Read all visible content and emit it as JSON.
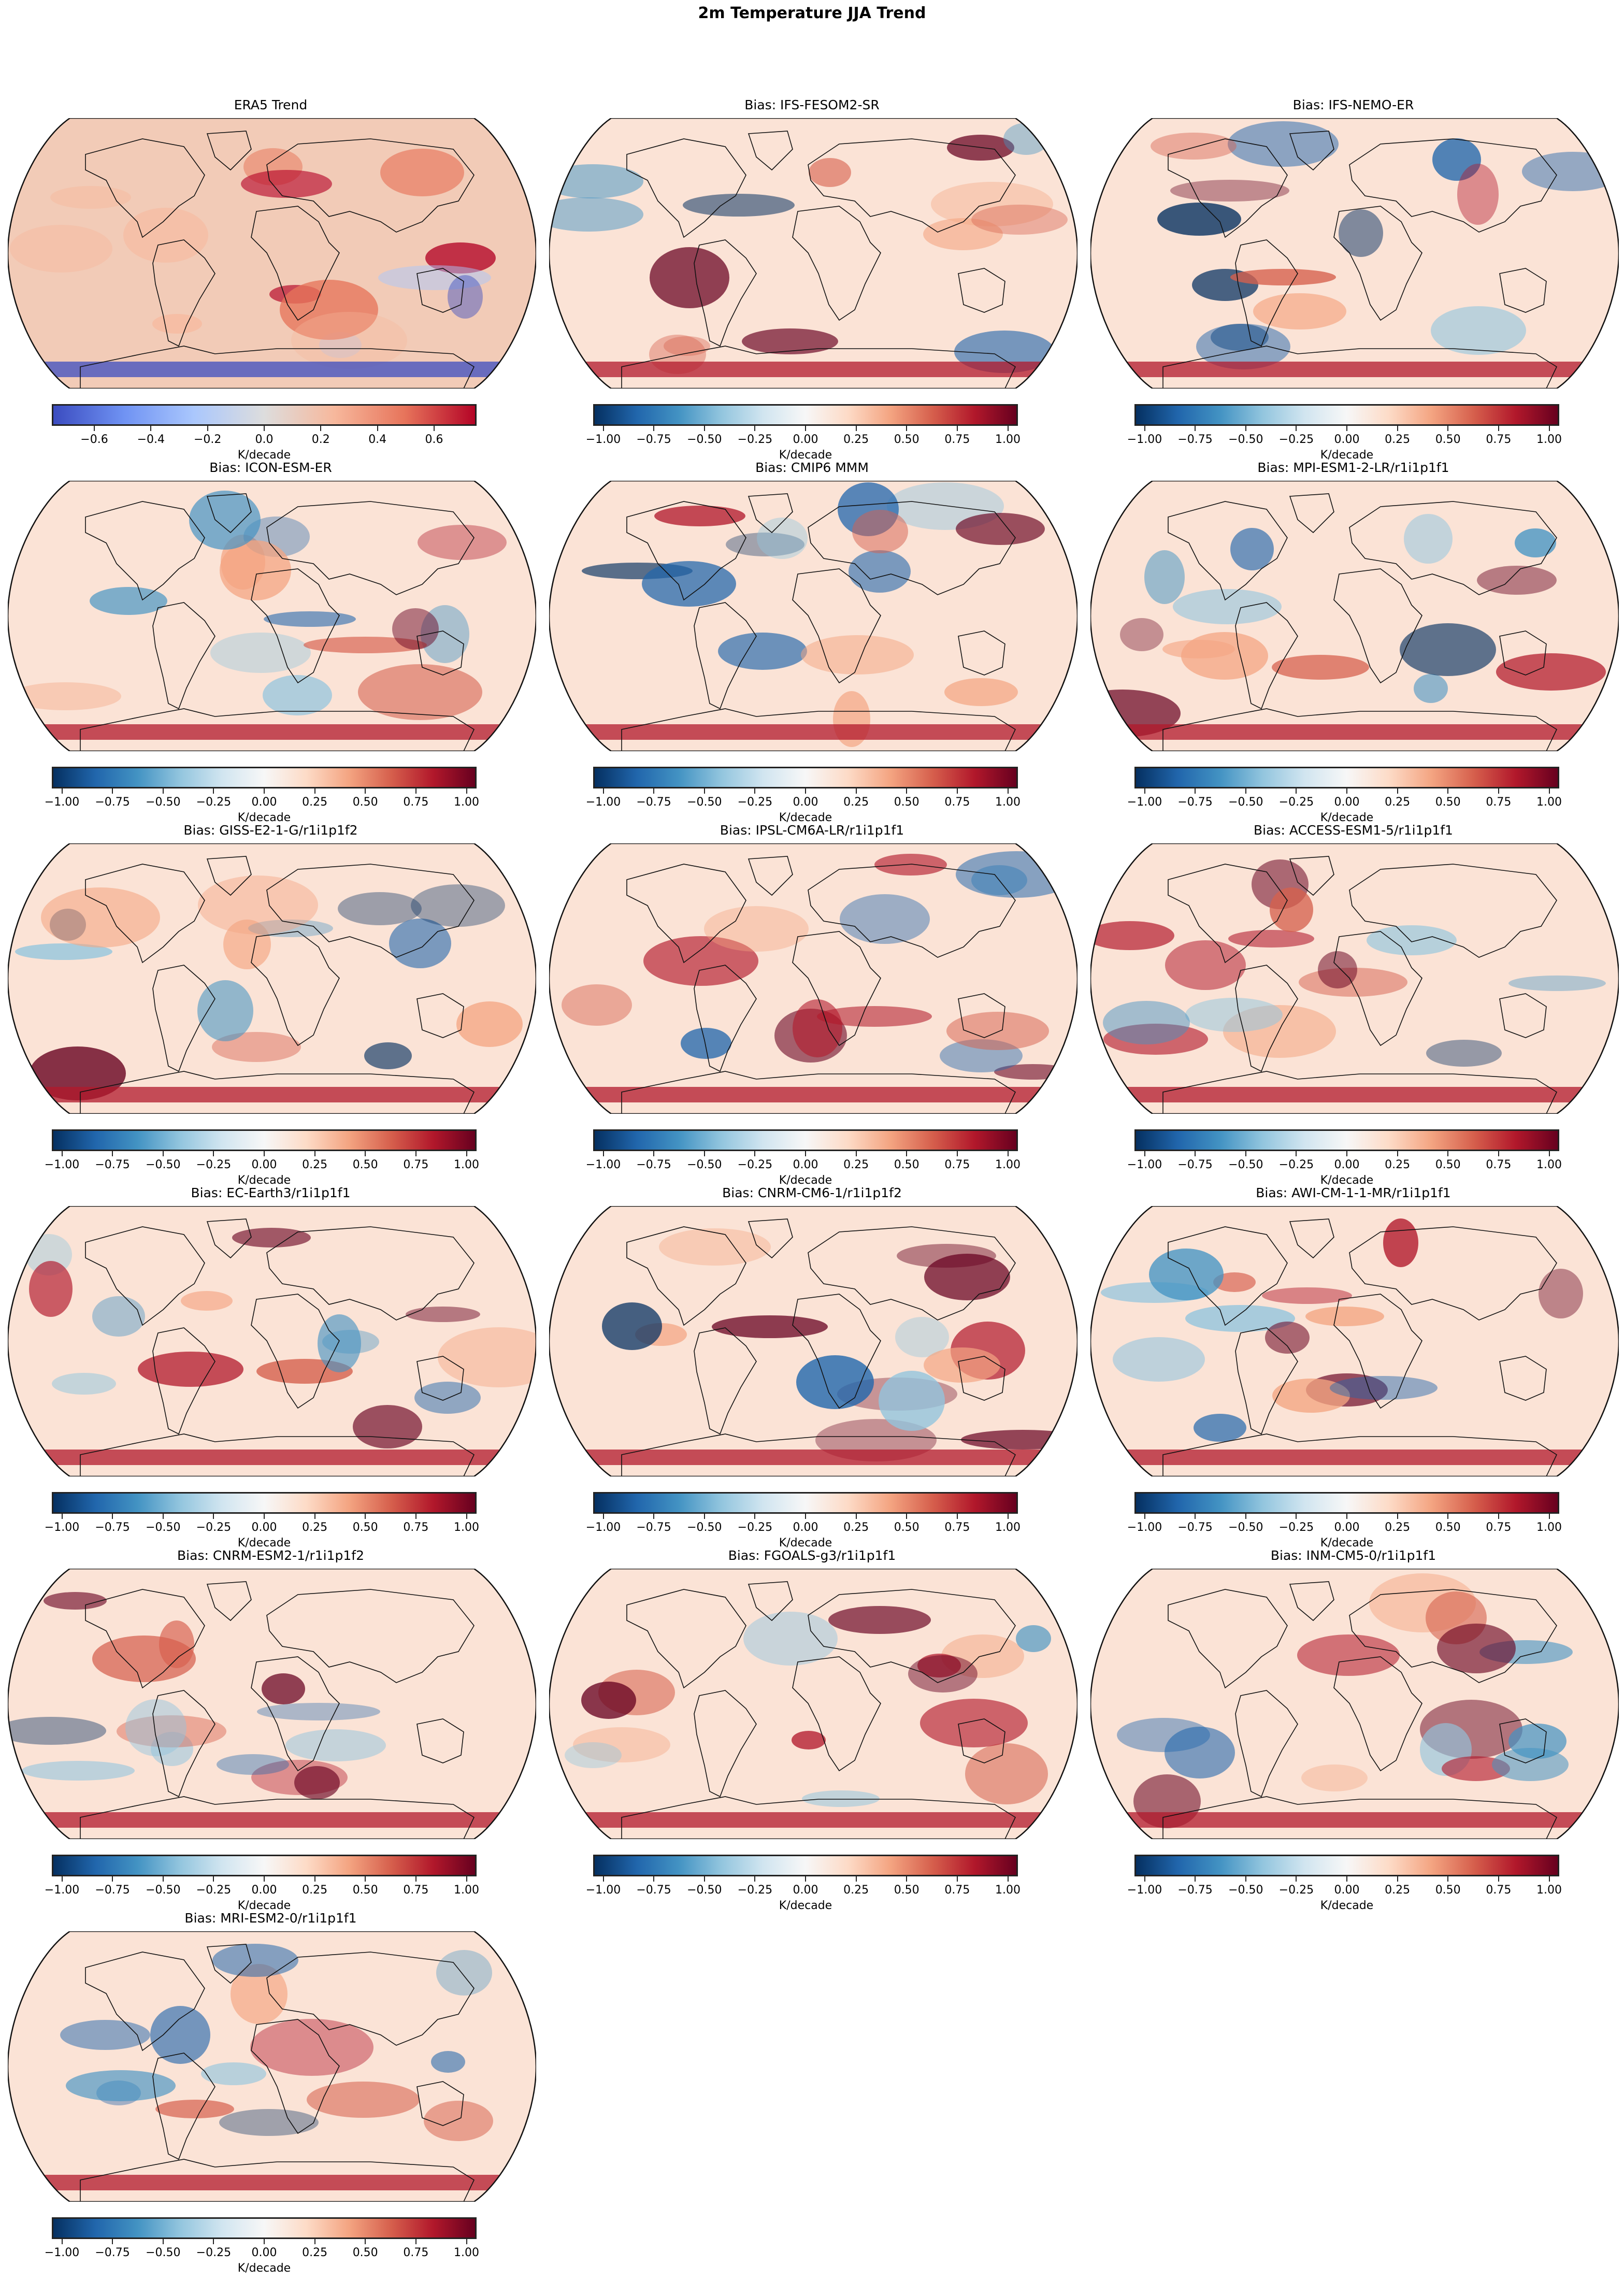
{
  "figure": {
    "suptitle": "2m Temperature JJA Trend"
  },
  "panels": [
    {
      "title": "ERA5 Trend",
      "cmap": "coolwarm",
      "cbar_label": "K/decade",
      "ticks": [
        "−0.6",
        "−0.4",
        "−0.2",
        "0.0",
        "0.2",
        "0.4",
        "0.6"
      ]
    },
    {
      "title": "Bias: IFS-FESOM2-SR",
      "cmap": "RdBu_r",
      "cbar_label": "K/decade",
      "ticks": [
        "−1.00",
        "−0.75",
        "−0.50",
        "−0.25",
        "0.00",
        "0.25",
        "0.50",
        "0.75",
        "1.00"
      ]
    },
    {
      "title": "Bias: IFS-NEMO-ER",
      "cmap": "RdBu_r",
      "cbar_label": "K/decade",
      "ticks": [
        "−1.00",
        "−0.75",
        "−0.50",
        "−0.25",
        "0.00",
        "0.25",
        "0.50",
        "0.75",
        "1.00"
      ]
    },
    {
      "title": "Bias: ICON-ESM-ER",
      "cmap": "RdBu_r",
      "cbar_label": "K/decade",
      "ticks": [
        "−1.00",
        "−0.75",
        "−0.50",
        "−0.25",
        "0.00",
        "0.25",
        "0.50",
        "0.75",
        "1.00"
      ]
    },
    {
      "title": "Bias: CMIP6 MMM",
      "cmap": "RdBu_r",
      "cbar_label": "K/decade",
      "ticks": [
        "−1.00",
        "−0.75",
        "−0.50",
        "−0.25",
        "0.00",
        "0.25",
        "0.50",
        "0.75",
        "1.00"
      ]
    },
    {
      "title": "Bias: MPI-ESM1-2-LR/r1i1p1f1",
      "cmap": "RdBu_r",
      "cbar_label": "K/decade",
      "ticks": [
        "−1.00",
        "−0.75",
        "−0.50",
        "−0.25",
        "0.00",
        "0.25",
        "0.50",
        "0.75",
        "1.00"
      ]
    },
    {
      "title": "Bias: GISS-E2-1-G/r1i1p1f2",
      "cmap": "RdBu_r",
      "cbar_label": "K/decade",
      "ticks": [
        "−1.00",
        "−0.75",
        "−0.50",
        "−0.25",
        "0.00",
        "0.25",
        "0.50",
        "0.75",
        "1.00"
      ]
    },
    {
      "title": "Bias: IPSL-CM6A-LR/r1i1p1f1",
      "cmap": "RdBu_r",
      "cbar_label": "K/decade",
      "ticks": [
        "−1.00",
        "−0.75",
        "−0.50",
        "−0.25",
        "0.00",
        "0.25",
        "0.50",
        "0.75",
        "1.00"
      ]
    },
    {
      "title": "Bias: ACCESS-ESM1-5/r1i1p1f1",
      "cmap": "RdBu_r",
      "cbar_label": "K/decade",
      "ticks": [
        "−1.00",
        "−0.75",
        "−0.50",
        "−0.25",
        "0.00",
        "0.25",
        "0.50",
        "0.75",
        "1.00"
      ]
    },
    {
      "title": "Bias: EC-Earth3/r1i1p1f1",
      "cmap": "RdBu_r",
      "cbar_label": "K/decade",
      "ticks": [
        "−1.00",
        "−0.75",
        "−0.50",
        "−0.25",
        "0.00",
        "0.25",
        "0.50",
        "0.75",
        "1.00"
      ]
    },
    {
      "title": "Bias: CNRM-CM6-1/r1i1p1f2",
      "cmap": "RdBu_r",
      "cbar_label": "K/decade",
      "ticks": [
        "−1.00",
        "−0.75",
        "−0.50",
        "−0.25",
        "0.00",
        "0.25",
        "0.50",
        "0.75",
        "1.00"
      ]
    },
    {
      "title": "Bias: AWI-CM-1-1-MR/r1i1p1f1",
      "cmap": "RdBu_r",
      "cbar_label": "K/decade",
      "ticks": [
        "−1.00",
        "−0.75",
        "−0.50",
        "−0.25",
        "0.00",
        "0.25",
        "0.50",
        "0.75",
        "1.00"
      ]
    },
    {
      "title": "Bias: CNRM-ESM2-1/r1i1p1f2",
      "cmap": "RdBu_r",
      "cbar_label": "K/decade",
      "ticks": [
        "−1.00",
        "−0.75",
        "−0.50",
        "−0.25",
        "0.00",
        "0.25",
        "0.50",
        "0.75",
        "1.00"
      ]
    },
    {
      "title": "Bias: FGOALS-g3/r1i1p1f1",
      "cmap": "RdBu_r",
      "cbar_label": "K/decade",
      "ticks": [
        "−1.00",
        "−0.75",
        "−0.50",
        "−0.25",
        "0.00",
        "0.25",
        "0.50",
        "0.75",
        "1.00"
      ]
    },
    {
      "title": "Bias: INM-CM5-0/r1i1p1f1",
      "cmap": "RdBu_r",
      "cbar_label": "K/decade",
      "ticks": [
        "−1.00",
        "−0.75",
        "−0.50",
        "−0.25",
        "0.00",
        "0.25",
        "0.50",
        "0.75",
        "1.00"
      ]
    },
    {
      "title": "Bias: MRI-ESM2-0/r1i1p1f1",
      "cmap": "RdBu_r",
      "cbar_label": "K/decade",
      "ticks": [
        "−1.00",
        "−0.75",
        "−0.50",
        "−0.25",
        "0.00",
        "0.25",
        "0.50",
        "0.75",
        "1.00"
      ]
    }
  ],
  "colors": {
    "coolwarm": [
      "#3b4cc0",
      "#6f92f3",
      "#aac7fd",
      "#dddddd",
      "#f7b89c",
      "#e7745b",
      "#b40426"
    ],
    "RdBu_r": [
      "#053061",
      "#2166ac",
      "#4393c3",
      "#92c5de",
      "#d1e5f0",
      "#f7f7f7",
      "#fddbc7",
      "#f4a582",
      "#d6604d",
      "#b2182b",
      "#67001f"
    ]
  },
  "chart_data": [
    {
      "type": "heatmap",
      "title": "ERA5 Trend",
      "projection": "Robinson",
      "colorbar": {
        "label": "K/decade",
        "vmin": -0.75,
        "vmax": 0.75,
        "ticks": [
          -0.6,
          -0.4,
          -0.2,
          0.0,
          0.2,
          0.4,
          0.6
        ],
        "cmap": "coolwarm",
        "orientation": "horizontal"
      },
      "notes": "Strong warming over Europe/Middle East, NE Canada, Greenland; cooling over Southern Ocean near Antarctica"
    },
    {
      "type": "heatmap",
      "title": "Bias: IFS-FESOM2-SR",
      "projection": "Robinson",
      "colorbar": {
        "label": "K/decade",
        "vmin": -1.05,
        "vmax": 1.05,
        "ticks": [
          -1.0,
          -0.75,
          -0.5,
          -0.25,
          0.0,
          0.25,
          0.5,
          0.75,
          1.0
        ],
        "cmap": "RdBu_r",
        "orientation": "horizontal"
      }
    },
    {
      "type": "heatmap",
      "title": "Bias: IFS-NEMO-ER",
      "projection": "Robinson",
      "colorbar": {
        "label": "K/decade",
        "vmin": -1.05,
        "vmax": 1.05,
        "ticks": [
          -1.0,
          -0.75,
          -0.5,
          -0.25,
          0.0,
          0.25,
          0.5,
          0.75,
          1.0
        ],
        "cmap": "RdBu_r",
        "orientation": "horizontal"
      }
    },
    {
      "type": "heatmap",
      "title": "Bias: ICON-ESM-ER",
      "projection": "Robinson",
      "colorbar": {
        "label": "K/decade",
        "vmin": -1.05,
        "vmax": 1.05,
        "ticks": [
          -1.0,
          -0.75,
          -0.5,
          -0.25,
          0.0,
          0.25,
          0.5,
          0.75,
          1.0
        ],
        "cmap": "RdBu_r",
        "orientation": "horizontal"
      }
    },
    {
      "type": "heatmap",
      "title": "Bias: CMIP6 MMM",
      "projection": "Robinson",
      "colorbar": {
        "label": "K/decade",
        "vmin": -1.05,
        "vmax": 1.05,
        "ticks": [
          -1.0,
          -0.75,
          -0.5,
          -0.25,
          0.0,
          0.25,
          0.5,
          0.75,
          1.0
        ],
        "cmap": "RdBu_r",
        "orientation": "horizontal"
      }
    },
    {
      "type": "heatmap",
      "title": "Bias: MPI-ESM1-2-LR/r1i1p1f1",
      "projection": "Robinson",
      "colorbar": {
        "label": "K/decade",
        "vmin": -1.05,
        "vmax": 1.05,
        "ticks": [
          -1.0,
          -0.75,
          -0.5,
          -0.25,
          0.0,
          0.25,
          0.5,
          0.75,
          1.0
        ],
        "cmap": "RdBu_r",
        "orientation": "horizontal"
      }
    },
    {
      "type": "heatmap",
      "title": "Bias: GISS-E2-1-G/r1i1p1f2",
      "projection": "Robinson",
      "colorbar": {
        "label": "K/decade",
        "vmin": -1.05,
        "vmax": 1.05,
        "ticks": [
          -1.0,
          -0.75,
          -0.5,
          -0.25,
          0.0,
          0.25,
          0.5,
          0.75,
          1.0
        ],
        "cmap": "RdBu_r",
        "orientation": "horizontal"
      }
    },
    {
      "type": "heatmap",
      "title": "Bias: IPSL-CM6A-LR/r1i1p1f1",
      "projection": "Robinson",
      "colorbar": {
        "label": "K/decade",
        "vmin": -1.05,
        "vmax": 1.05,
        "ticks": [
          -1.0,
          -0.75,
          -0.5,
          -0.25,
          0.0,
          0.25,
          0.5,
          0.75,
          1.0
        ],
        "cmap": "RdBu_r",
        "orientation": "horizontal"
      }
    },
    {
      "type": "heatmap",
      "title": "Bias: ACCESS-ESM1-5/r1i1p1f1",
      "projection": "Robinson",
      "colorbar": {
        "label": "K/decade",
        "vmin": -1.05,
        "vmax": 1.05,
        "ticks": [
          -1.0,
          -0.75,
          -0.5,
          -0.25,
          0.0,
          0.25,
          0.5,
          0.75,
          1.0
        ],
        "cmap": "RdBu_r",
        "orientation": "horizontal"
      }
    },
    {
      "type": "heatmap",
      "title": "Bias: EC-Earth3/r1i1p1f1",
      "projection": "Robinson",
      "colorbar": {
        "label": "K/decade",
        "vmin": -1.05,
        "vmax": 1.05,
        "ticks": [
          -1.0,
          -0.75,
          -0.5,
          -0.25,
          0.0,
          0.25,
          0.5,
          0.75,
          1.0
        ],
        "cmap": "RdBu_r",
        "orientation": "horizontal"
      }
    },
    {
      "type": "heatmap",
      "title": "Bias: CNRM-CM6-1/r1i1p1f2",
      "projection": "Robinson",
      "colorbar": {
        "label": "K/decade",
        "vmin": -1.05,
        "vmax": 1.05,
        "ticks": [
          -1.0,
          -0.75,
          -0.5,
          -0.25,
          0.0,
          0.25,
          0.5,
          0.75,
          1.0
        ],
        "cmap": "RdBu_r",
        "orientation": "horizontal"
      }
    },
    {
      "type": "heatmap",
      "title": "Bias: AWI-CM-1-1-MR/r1i1p1f1",
      "projection": "Robinson",
      "colorbar": {
        "label": "K/decade",
        "vmin": -1.05,
        "vmax": 1.05,
        "ticks": [
          -1.0,
          -0.75,
          -0.5,
          -0.25,
          0.0,
          0.25,
          0.5,
          0.75,
          1.0
        ],
        "cmap": "RdBu_r",
        "orientation": "horizontal"
      }
    },
    {
      "type": "heatmap",
      "title": "Bias: CNRM-ESM2-1/r1i1p1f2",
      "projection": "Robinson",
      "colorbar": {
        "label": "K/decade",
        "vmin": -1.05,
        "vmax": 1.05,
        "ticks": [
          -1.0,
          -0.75,
          -0.5,
          -0.25,
          0.0,
          0.25,
          0.5,
          0.75,
          1.0
        ],
        "cmap": "RdBu_r",
        "orientation": "horizontal"
      }
    },
    {
      "type": "heatmap",
      "title": "Bias: FGOALS-g3/r1i1p1f1",
      "projection": "Robinson",
      "colorbar": {
        "label": "K/decade",
        "vmin": -1.05,
        "vmax": 1.05,
        "ticks": [
          -1.0,
          -0.75,
          -0.5,
          -0.25,
          0.0,
          0.25,
          0.5,
          0.75,
          1.0
        ],
        "cmap": "RdBu_r",
        "orientation": "horizontal"
      }
    },
    {
      "type": "heatmap",
      "title": "Bias: INM-CM5-0/r1i1p1f1",
      "projection": "Robinson",
      "colorbar": {
        "label": "K/decade",
        "vmin": -1.05,
        "vmax": 1.05,
        "ticks": [
          -1.0,
          -0.75,
          -0.5,
          -0.25,
          0.0,
          0.25,
          0.5,
          0.75,
          1.0
        ],
        "cmap": "RdBu_r",
        "orientation": "horizontal"
      }
    },
    {
      "type": "heatmap",
      "title": "Bias: MRI-ESM2-0/r1i1p1f1",
      "projection": "Robinson",
      "colorbar": {
        "label": "K/decade",
        "vmin": -1.05,
        "vmax": 1.05,
        "ticks": [
          -1.0,
          -0.75,
          -0.5,
          -0.25,
          0.0,
          0.25,
          0.5,
          0.75,
          1.0
        ],
        "cmap": "RdBu_r",
        "orientation": "horizontal"
      }
    }
  ]
}
